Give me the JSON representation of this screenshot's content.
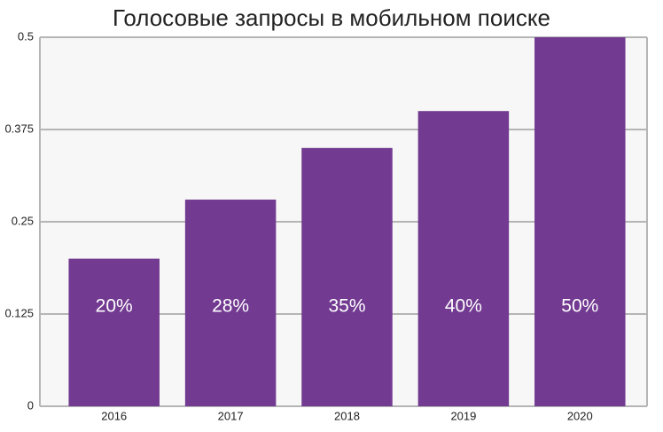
{
  "chart_data": {
    "type": "bar",
    "title": "Голосовые запросы в мобильном поиске",
    "categories": [
      "2016",
      "2017",
      "2018",
      "2019",
      "2020"
    ],
    "values": [
      0.2,
      0.28,
      0.35,
      0.4,
      0.5
    ],
    "value_labels": [
      "20%",
      "28%",
      "35%",
      "40%",
      "50%"
    ],
    "color": "#723a91",
    "ylim": [
      0,
      0.5
    ],
    "yticks": [
      0,
      0.125,
      0.25,
      0.375,
      0.5
    ],
    "grid": true
  }
}
